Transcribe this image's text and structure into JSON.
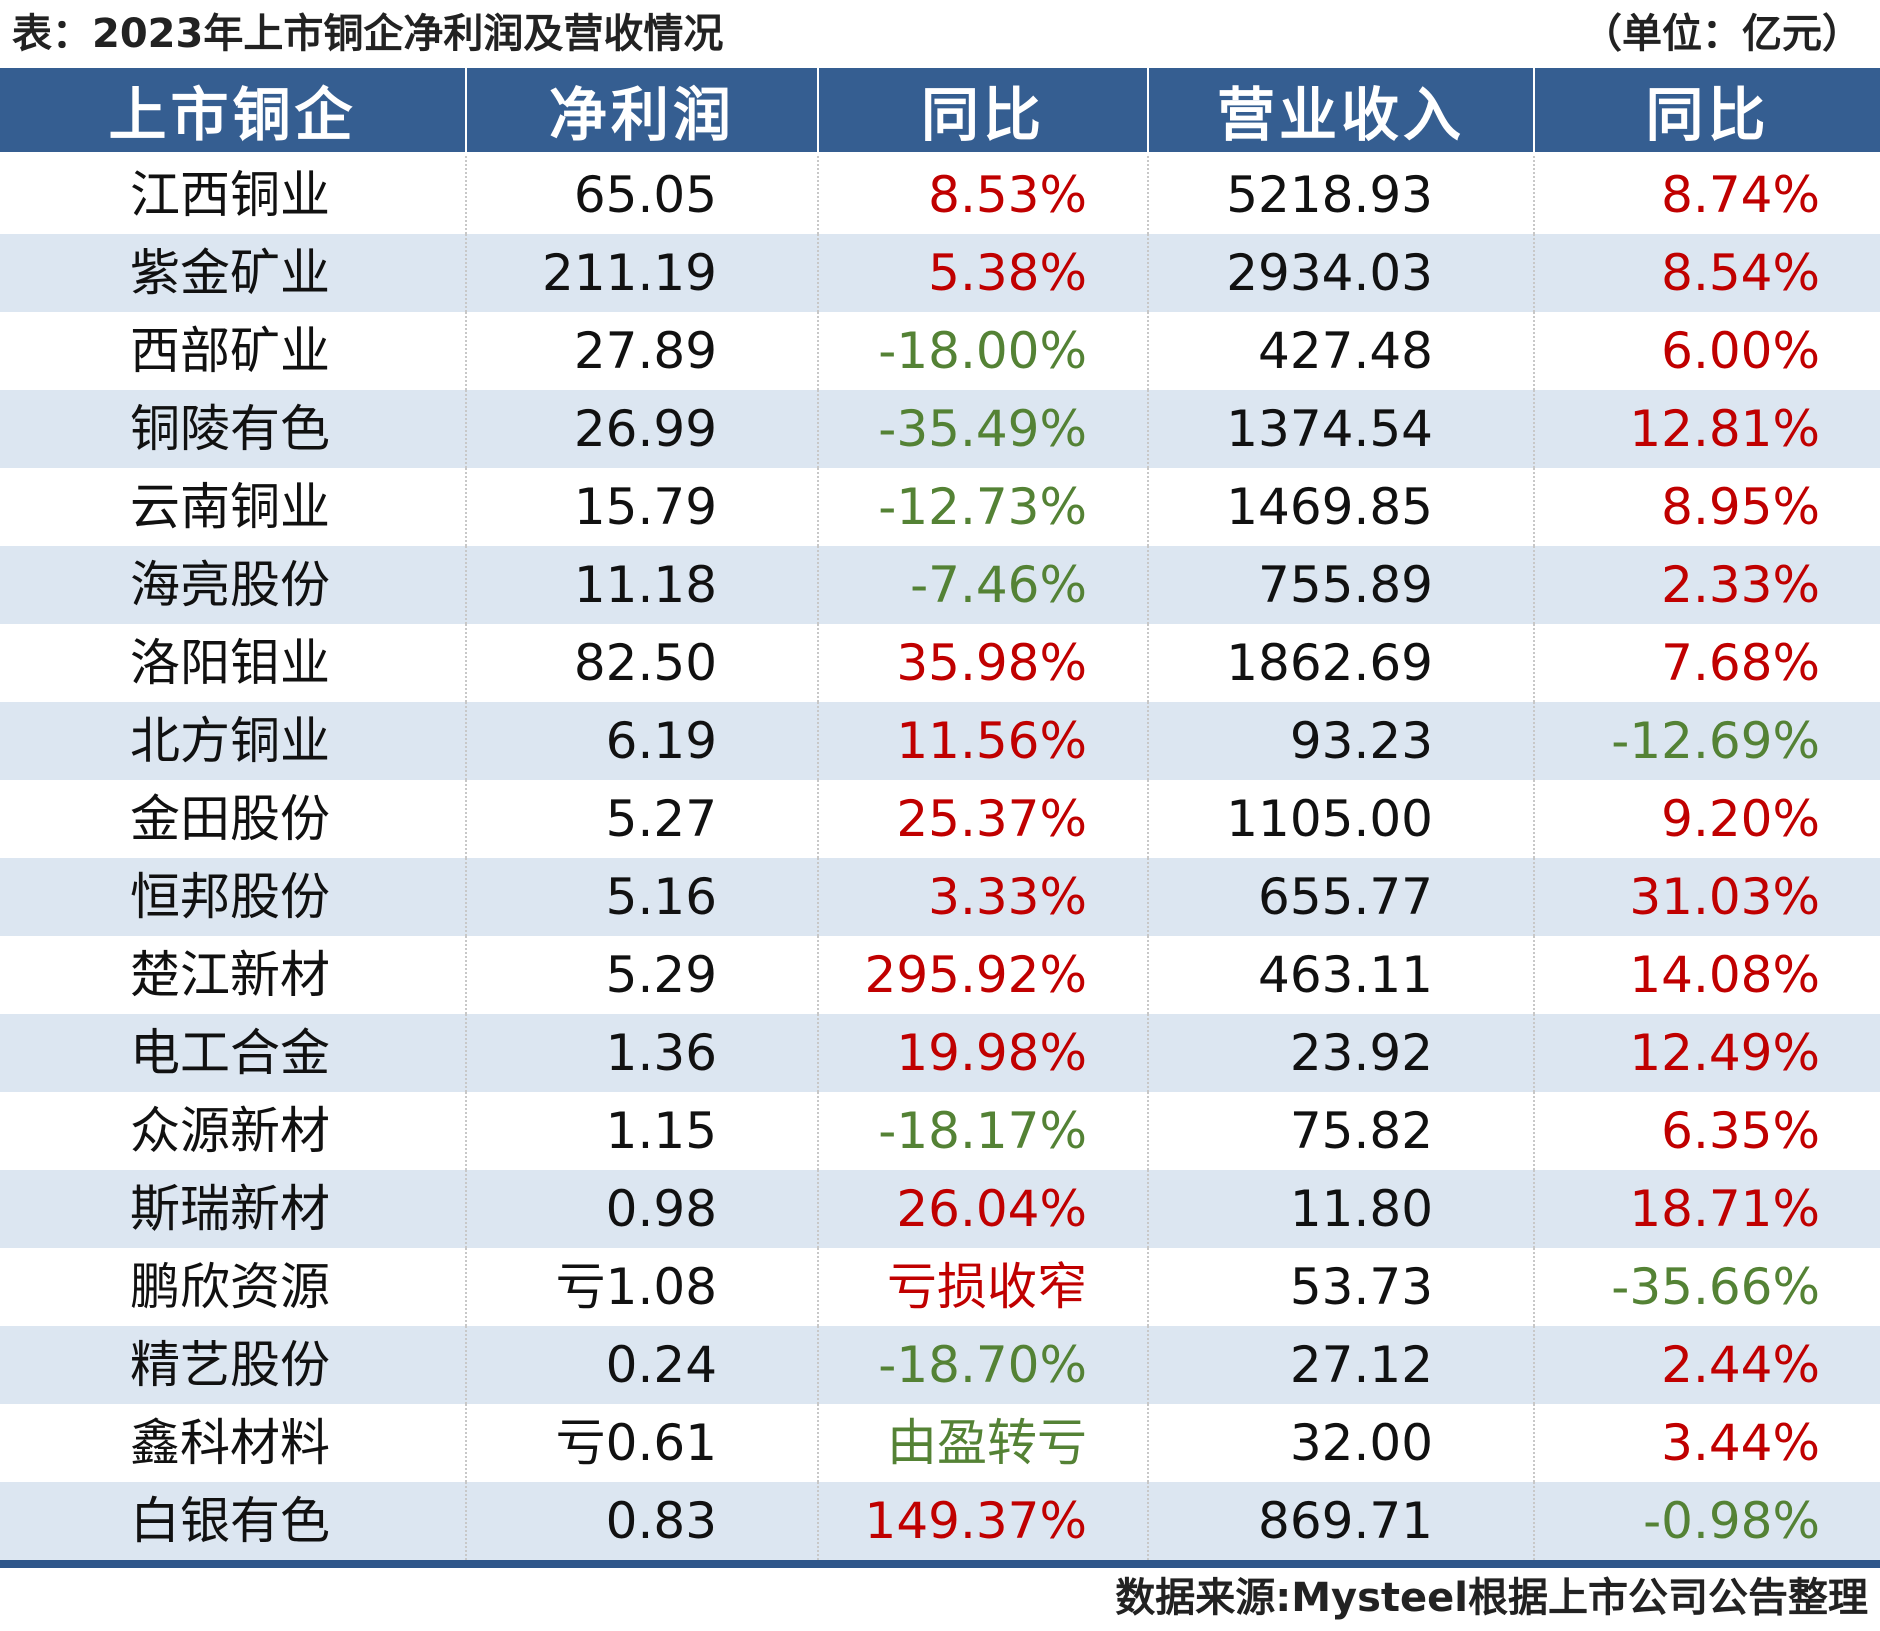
{
  "header": {
    "title": "表：2023年上市铜企净利润及营收情况",
    "unit": "（单位：亿元）"
  },
  "table": {
    "columns": [
      "上市铜企",
      "净利润",
      "同比",
      "营业收入",
      "同比"
    ],
    "rows": [
      {
        "company": "江西铜业",
        "net_profit": "65.05",
        "profit_yoy": "8.53%",
        "profit_trend": "up",
        "revenue": "5218.93",
        "revenue_yoy": "8.74%",
        "revenue_trend": "up"
      },
      {
        "company": "紫金矿业",
        "net_profit": "211.19",
        "profit_yoy": "5.38%",
        "profit_trend": "up",
        "revenue": "2934.03",
        "revenue_yoy": "8.54%",
        "revenue_trend": "up"
      },
      {
        "company": "西部矿业",
        "net_profit": "27.89",
        "profit_yoy": "-18.00%",
        "profit_trend": "down",
        "revenue": "427.48",
        "revenue_yoy": "6.00%",
        "revenue_trend": "up"
      },
      {
        "company": "铜陵有色",
        "net_profit": "26.99",
        "profit_yoy": "-35.49%",
        "profit_trend": "down",
        "revenue": "1374.54",
        "revenue_yoy": "12.81%",
        "revenue_trend": "up"
      },
      {
        "company": "云南铜业",
        "net_profit": "15.79",
        "profit_yoy": "-12.73%",
        "profit_trend": "down",
        "revenue": "1469.85",
        "revenue_yoy": "8.95%",
        "revenue_trend": "up"
      },
      {
        "company": "海亮股份",
        "net_profit": "11.18",
        "profit_yoy": "-7.46%",
        "profit_trend": "down",
        "revenue": "755.89",
        "revenue_yoy": "2.33%",
        "revenue_trend": "up"
      },
      {
        "company": "洛阳钼业",
        "net_profit": "82.50",
        "profit_yoy": "35.98%",
        "profit_trend": "up",
        "revenue": "1862.69",
        "revenue_yoy": "7.68%",
        "revenue_trend": "up"
      },
      {
        "company": "北方铜业",
        "net_profit": "6.19",
        "profit_yoy": "11.56%",
        "profit_trend": "up",
        "revenue": "93.23",
        "revenue_yoy": "-12.69%",
        "revenue_trend": "down"
      },
      {
        "company": "金田股份",
        "net_profit": "5.27",
        "profit_yoy": "25.37%",
        "profit_trend": "up",
        "revenue": "1105.00",
        "revenue_yoy": "9.20%",
        "revenue_trend": "up"
      },
      {
        "company": "恒邦股份",
        "net_profit": "5.16",
        "profit_yoy": "3.33%",
        "profit_trend": "up",
        "revenue": "655.77",
        "revenue_yoy": "31.03%",
        "revenue_trend": "up"
      },
      {
        "company": "楚江新材",
        "net_profit": "5.29",
        "profit_yoy": "295.92%",
        "profit_trend": "up",
        "revenue": "463.11",
        "revenue_yoy": "14.08%",
        "revenue_trend": "up"
      },
      {
        "company": "电工合金",
        "net_profit": "1.36",
        "profit_yoy": "19.98%",
        "profit_trend": "up",
        "revenue": "23.92",
        "revenue_yoy": "12.49%",
        "revenue_trend": "up"
      },
      {
        "company": "众源新材",
        "net_profit": "1.15",
        "profit_yoy": "-18.17%",
        "profit_trend": "down",
        "revenue": "75.82",
        "revenue_yoy": "6.35%",
        "revenue_trend": "up"
      },
      {
        "company": "斯瑞新材",
        "net_profit": "0.98",
        "profit_yoy": "26.04%",
        "profit_trend": "up",
        "revenue": "11.80",
        "revenue_yoy": "18.71%",
        "revenue_trend": "up"
      },
      {
        "company": "鹏欣资源",
        "net_profit": "亏1.08",
        "profit_yoy": "亏损收窄",
        "profit_trend": "up",
        "revenue": "53.73",
        "revenue_yoy": "-35.66%",
        "revenue_trend": "down"
      },
      {
        "company": "精艺股份",
        "net_profit": "0.24",
        "profit_yoy": "-18.70%",
        "profit_trend": "down",
        "revenue": "27.12",
        "revenue_yoy": "2.44%",
        "revenue_trend": "up"
      },
      {
        "company": "鑫科材料",
        "net_profit": "亏0.61",
        "profit_yoy": "由盈转亏",
        "profit_trend": "down",
        "revenue": "32.00",
        "revenue_yoy": "3.44%",
        "revenue_trend": "up"
      },
      {
        "company": "白银有色",
        "net_profit": "0.83",
        "profit_yoy": "149.37%",
        "profit_trend": "up",
        "revenue": "869.71",
        "revenue_yoy": "-0.98%",
        "revenue_trend": "down"
      }
    ]
  },
  "footer": {
    "source": "数据来源:Mysteel根据上市公司公告整理"
  },
  "colors": {
    "header_bg": "#355E91",
    "stripe_bg": "#DCE6F1",
    "positive": "#C00000",
    "negative": "#548235"
  }
}
